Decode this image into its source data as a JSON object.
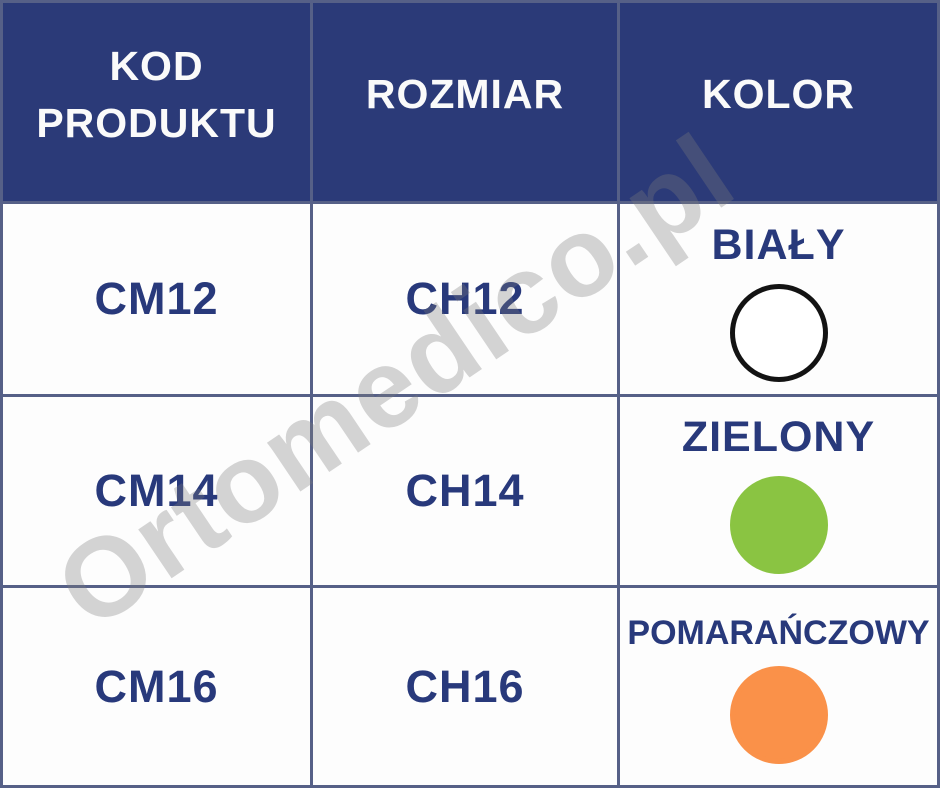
{
  "header": {
    "columns": [
      {
        "label": "KOD PRODUKTU"
      },
      {
        "label": "ROZMIAR"
      },
      {
        "label": "KOLOR"
      }
    ]
  },
  "rows": [
    {
      "product_code": "CM12",
      "size": "CH12",
      "color": {
        "name": "BIAŁY",
        "swatch_hex": "#ffffff",
        "swatch_outline_hex": "#131313"
      }
    },
    {
      "product_code": "CM14",
      "size": "CH14",
      "color": {
        "name": "ZIELONY",
        "swatch_hex": "#8ac442",
        "swatch_outline_hex": "#8ac442"
      }
    },
    {
      "product_code": "CM16",
      "size": "CH16",
      "color": {
        "name": "POMARAŃCZOWY",
        "swatch_hex": "#fa9149",
        "swatch_outline_hex": "#fa9149"
      }
    }
  ],
  "watermark": {
    "text": "Ortomedico.pl"
  },
  "theme": {
    "header_bg": "#2b3a78",
    "header_text": "#fafafa",
    "body_text_navy": "#28397b",
    "grid_line": "#566087",
    "cell_bg": "#fdfdfd"
  },
  "chart_data": {
    "type": "table",
    "columns": [
      "KOD PRODUKTU",
      "ROZMIAR",
      "KOLOR"
    ],
    "rows": [
      [
        "CM12",
        "CH12",
        "BIAŁY"
      ],
      [
        "CM14",
        "CH14",
        "ZIELONY"
      ],
      [
        "CM16",
        "CH16",
        "POMARAŃCZOWY"
      ]
    ],
    "color_swatches": {
      "BIAŁY": "#ffffff",
      "ZIELONY": "#8ac442",
      "POMARAŃCZOWY": "#fa9149"
    },
    "title": "",
    "legend_position": "none",
    "grid": true
  }
}
